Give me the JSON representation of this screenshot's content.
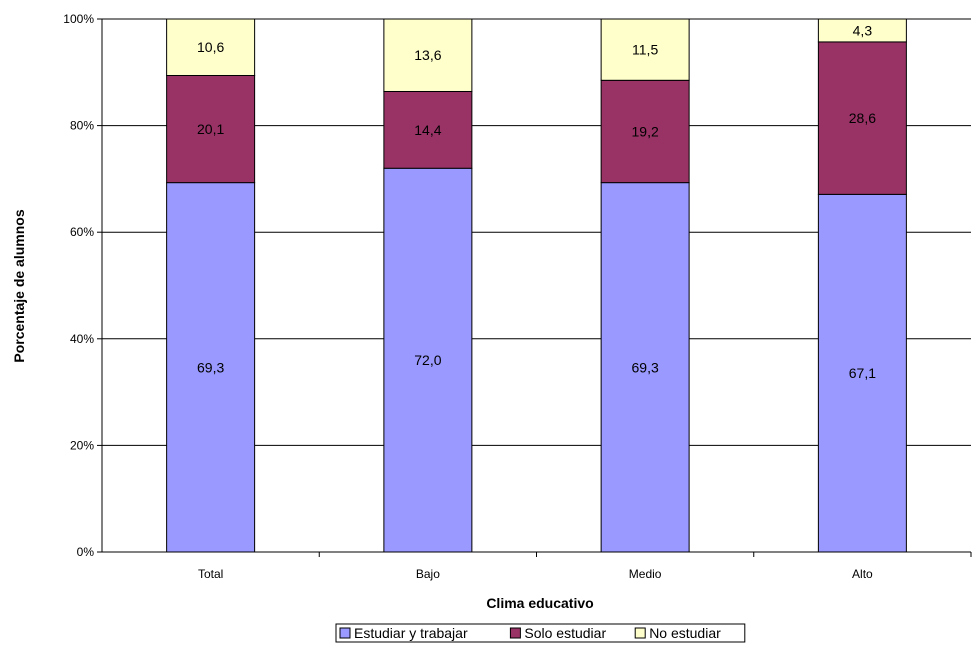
{
  "chart_data": {
    "type": "bar",
    "stacked": true,
    "categories": [
      "Total",
      "Bajo",
      "Medio",
      "Alto"
    ],
    "series": [
      {
        "name": "Estudiar y trabajar",
        "values": [
          69.3,
          72.0,
          69.3,
          67.1
        ],
        "labels": [
          "69,3",
          "72,0",
          "69,3",
          "67,1"
        ],
        "color": "#9999ff"
      },
      {
        "name": "Solo estudiar",
        "values": [
          20.1,
          14.4,
          19.2,
          28.6
        ],
        "labels": [
          "20,1",
          "14,4",
          "19,2",
          "28,6"
        ],
        "color": "#993366"
      },
      {
        "name": "No estudiar",
        "values": [
          10.6,
          13.6,
          11.5,
          4.3
        ],
        "labels": [
          "10,6",
          "13,6",
          "11,5",
          "4,3"
        ],
        "color": "#ffffcc"
      }
    ],
    "xlabel": "Clima educativo",
    "ylabel": "Porcentaje de alumnos",
    "ylim": [
      0,
      100
    ],
    "yticks": [
      "0%",
      "20%",
      "40%",
      "60%",
      "80%",
      "100%"
    ],
    "grid": true,
    "legend_position": "bottom"
  }
}
